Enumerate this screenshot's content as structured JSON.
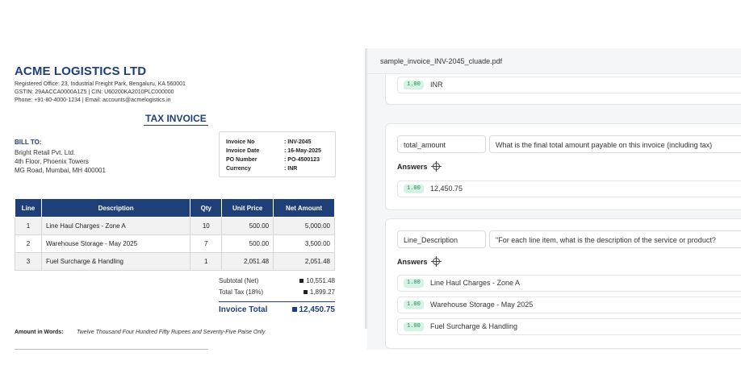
{
  "invoice": {
    "company": "ACME LOGISTICS LTD",
    "address_lines": [
      "Registered Office: 23, Industrial Freight Park, Bengaluru, KA 560001",
      "GSTIN: 29AACCA0000A1Z5  |  CIN: U60200KA2010PLC000000",
      "Phone: +91-80-4000-1234  |  Email: accounts@acmelogistics.in"
    ],
    "doc_title": "TAX INVOICE",
    "bill_to_label": "BILL TO:",
    "bill_to_lines": [
      "Bright Retail Pvt. Ltd.",
      "4th Floor, Phoenix Towers",
      "MG Road, Mumbai, MH 400001"
    ],
    "meta": [
      {
        "k": "Invoice No",
        "v": ": INV-2045"
      },
      {
        "k": "Invoice Date",
        "v": ": 16-May-2025"
      },
      {
        "k": "PO Number",
        "v": ": PO-4500123"
      },
      {
        "k": "Currency",
        "v": ": INR"
      }
    ],
    "table": {
      "headers": [
        "Line",
        "Description",
        "Qty",
        "Unit Price",
        "Net Amount"
      ],
      "rows": [
        [
          "1",
          "Line Haul Charges - Zone A",
          "10",
          "500.00",
          "5,000.00"
        ],
        [
          "2",
          "Warehouse Storage - May 2025",
          "7",
          "500.00",
          "3,500.00"
        ],
        [
          "3",
          "Fuel Surcharge & Handling",
          "1",
          "2,051.48",
          "2,051.48"
        ]
      ]
    },
    "subtotal_label": "Subtotal (Net)",
    "subtotal_value": "10,551.48",
    "tax_label": "Total Tax (18%)",
    "tax_value": "1,899.27",
    "total_label": "Invoice Total",
    "total_value": "12,450.75",
    "words_label": "Amount in Words:",
    "words_value": "Twelve Thousand Four Hundred Fifty Rupees and Seventy-Five Paise Only"
  },
  "panel": {
    "filename": "sample_invoice_INV-2045_cluade.pdf",
    "answers_label": "Answers",
    "cards": [
      {
        "field": "",
        "question": "",
        "answers": [
          {
            "conf": "1.00",
            "text": "INR"
          }
        ]
      },
      {
        "field": "total_amount",
        "question": "What is the final total amount payable on this invoice (including tax)",
        "answers": [
          {
            "conf": "1.00",
            "text": "12,450.75"
          }
        ]
      },
      {
        "field": "Line_Description",
        "question": "\"For each line item, what is the description of the service or product?",
        "answers": [
          {
            "conf": "1.00",
            "text": "Line Haul Charges - Zone A"
          },
          {
            "conf": "1.00",
            "text": "Warehouse Storage - May 2025"
          },
          {
            "conf": "1.00",
            "text": "Fuel Surcharge & Handling"
          }
        ]
      }
    ]
  },
  "colors": {
    "brand": "#1f3f79",
    "confidence_bg": "#d5f3e4",
    "confidence_text": "#1e8a57"
  },
  "icons": {
    "answers_target": "crosshair-icon"
  }
}
